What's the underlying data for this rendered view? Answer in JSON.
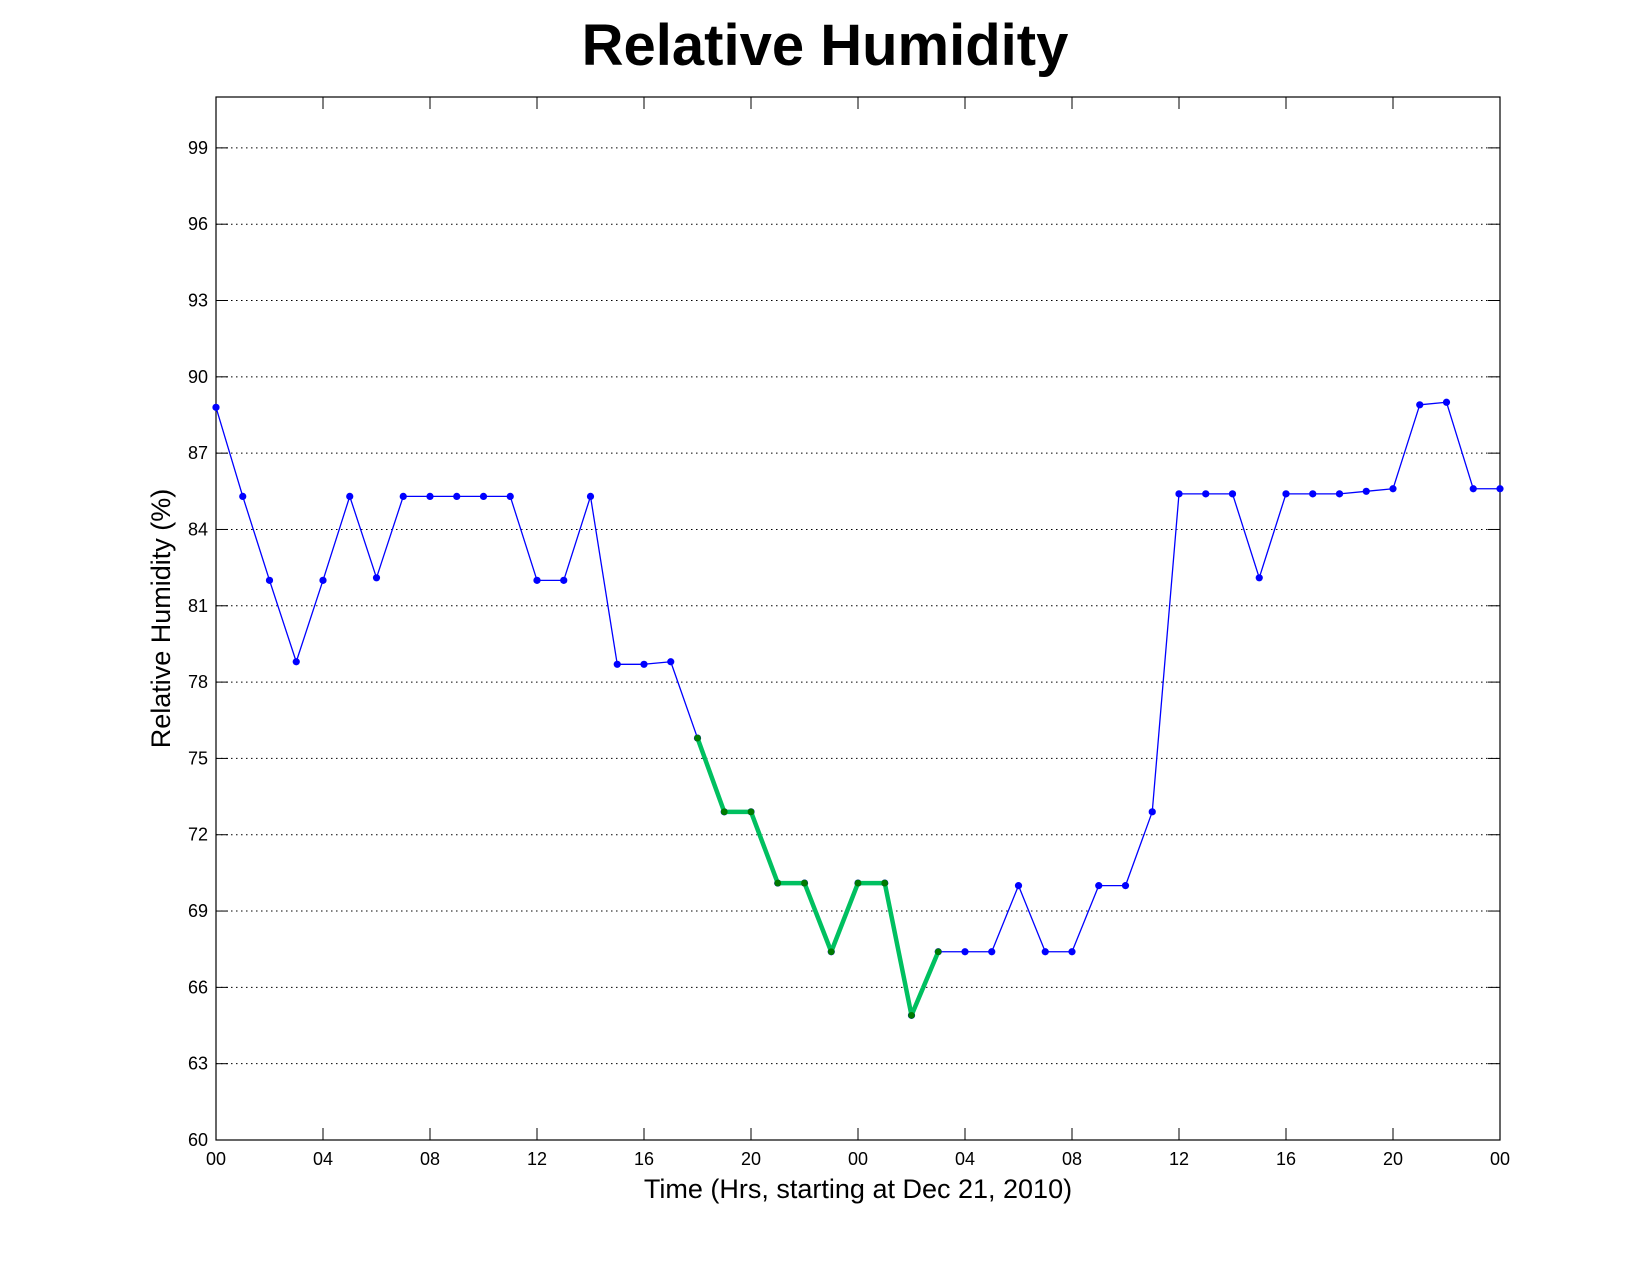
{
  "chart_data": {
    "type": "line",
    "title": "Relative Humidity",
    "xlabel": "Time (Hrs, starting at Dec 21, 2010)",
    "ylabel": "Relative Humidity (%)",
    "x_unit": "hours",
    "xlim": [
      0,
      48
    ],
    "ylim": [
      60,
      101
    ],
    "yticks": [
      60,
      63,
      66,
      69,
      72,
      75,
      78,
      81,
      84,
      87,
      90,
      93,
      96,
      99
    ],
    "xticks": [
      0,
      4,
      8,
      12,
      16,
      20,
      24,
      28,
      32,
      36,
      40,
      44,
      48
    ],
    "xtick_labels": [
      "00",
      "04",
      "08",
      "12",
      "16",
      "20",
      "00",
      "04",
      "08",
      "12",
      "16",
      "20",
      "00"
    ],
    "grid": "horizontal dotted",
    "series": [
      {
        "color": "#0000ff",
        "values": [
          88.8,
          85.3,
          82.0,
          78.8,
          82.0,
          85.3,
          82.1,
          85.3,
          85.3,
          85.3,
          85.3,
          85.3,
          82.0,
          82.0,
          85.3,
          78.7,
          78.7,
          78.8,
          75.8,
          72.9,
          72.9,
          70.1,
          70.1,
          67.4,
          70.1,
          70.1,
          64.9,
          67.4,
          67.4,
          67.4,
          70.0,
          67.4,
          67.4,
          70.0,
          70.0,
          72.9,
          85.4,
          85.4,
          85.4,
          82.1,
          85.4,
          85.4,
          85.4,
          85.5,
          85.6,
          88.9,
          89.0,
          85.6,
          85.6
        ]
      },
      {
        "color": "#00c060",
        "marker_color": "#007a00",
        "x": [
          18,
          19,
          20,
          21,
          22,
          23,
          24,
          25,
          26,
          27
        ],
        "values": [
          75.8,
          72.9,
          72.9,
          70.1,
          70.1,
          67.4,
          70.1,
          70.1,
          64.9,
          67.4
        ]
      }
    ]
  }
}
